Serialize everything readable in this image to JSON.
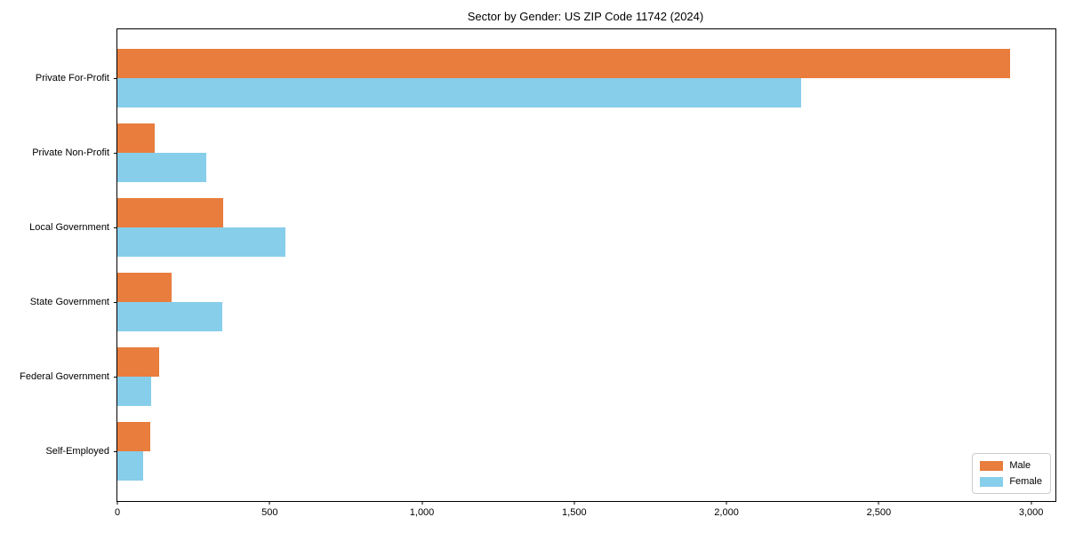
{
  "chart_data": {
    "type": "bar",
    "orientation": "horizontal",
    "title": "Sector by Gender: US ZIP Code 11742 (2024)",
    "categories": [
      "Private For-Profit",
      "Private Non-Profit",
      "Local Government",
      "State Government",
      "Federal Government",
      "Self-Employed"
    ],
    "series": [
      {
        "name": "Male",
        "color": "#E87D3D",
        "values": [
          2932,
          122,
          347,
          178,
          137,
          108
        ]
      },
      {
        "name": "Female",
        "color": "#87CEEB",
        "values": [
          2245,
          291,
          552,
          344,
          111,
          84
        ]
      }
    ],
    "xlabel": "",
    "ylabel": "",
    "xlim": [
      0,
      3080
    ],
    "xticks": [
      0,
      500,
      1000,
      1500,
      2000,
      2500,
      3000
    ],
    "xtick_labels": [
      "0",
      "500",
      "1,000",
      "1,500",
      "2,000",
      "2,500",
      "3,000"
    ],
    "grid": false,
    "background": "#ffffff",
    "spine_color": "#000000",
    "legend": {
      "position": "lower-right",
      "entries": [
        {
          "label": "Male",
          "color": "#E87D3D"
        },
        {
          "label": "Female",
          "color": "#87CEEB"
        }
      ]
    }
  }
}
